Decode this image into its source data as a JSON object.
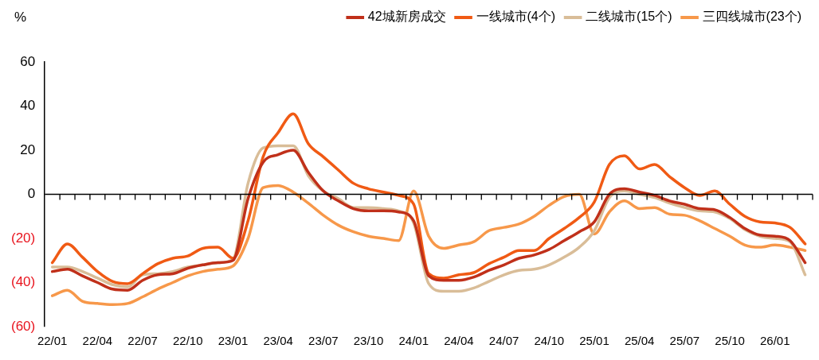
{
  "chart_data": {
    "type": "line",
    "ylabel": "%",
    "categories": [
      "22/01",
      null,
      null,
      "22/04",
      null,
      null,
      "22/07",
      null,
      null,
      "22/10",
      null,
      null,
      "23/01",
      null,
      null,
      "23/04",
      null,
      null,
      "23/07",
      null,
      null,
      "23/10",
      null,
      null,
      "24/01",
      null,
      null,
      "24/04",
      null,
      null,
      "24/07",
      null,
      null,
      "24/10",
      null,
      null,
      "25/01",
      null,
      null,
      "25/04",
      null,
      null,
      "25/07",
      null,
      null,
      "25/10",
      null,
      null,
      "26/01",
      null,
      null
    ],
    "series": [
      {
        "name": "42城新房成交",
        "color": "#c0301a",
        "values": [
          -35,
          -34,
          -37,
          -40,
          -43,
          -43.5,
          -39,
          -36.5,
          -36,
          -33.5,
          -32,
          -31,
          -30,
          -2,
          14.5,
          18,
          20,
          10,
          1.5,
          -3,
          -6.5,
          -7.5,
          -7.5,
          -8,
          -12,
          -37,
          -39,
          -39,
          -37.5,
          -34.5,
          -32,
          -29,
          -27.5,
          -25,
          -21,
          -17,
          -12.5,
          0,
          2.5,
          1,
          -0.5,
          -3,
          -4.5,
          -6.5,
          -7,
          -10.5,
          -15.5,
          -18.5,
          -19,
          -21,
          -31
        ]
      },
      {
        "name": "一线城市(4个)",
        "color": "#f05a14",
        "values": [
          -31,
          -22.5,
          -28.5,
          -35,
          -39.5,
          -40.5,
          -36,
          -31.5,
          -29,
          -28,
          -24.5,
          -24,
          -29,
          -12,
          17,
          28,
          36.5,
          23,
          17,
          11,
          5,
          2.5,
          1,
          -0.5,
          -4.5,
          -36,
          -38,
          -36.5,
          -35.5,
          -31.5,
          -28.5,
          -25.5,
          -25.5,
          -20,
          -15.5,
          -10.5,
          -3.5,
          13.5,
          17.5,
          11.5,
          13.5,
          8,
          3,
          -0.5,
          1.5,
          -4.5,
          -10,
          -12.5,
          -13,
          -15,
          -22.5
        ]
      },
      {
        "name": "二线城市(15个)",
        "color": "#d9bd98",
        "values": [
          -33,
          -33,
          -35,
          -38,
          -41,
          -42,
          -36.5,
          -36,
          -35,
          -33,
          -32,
          -31,
          -29.5,
          5,
          21,
          22,
          22,
          8.5,
          1.5,
          -2,
          -6,
          -6,
          -6.5,
          -7.5,
          -13,
          -40.5,
          -44,
          -44,
          -42.5,
          -39.5,
          -36.5,
          -34.5,
          -34,
          -32,
          -28.5,
          -24,
          -16.5,
          -1.5,
          1.5,
          0,
          -1.5,
          -4,
          -6,
          -7.5,
          -8,
          -11,
          -16,
          -19,
          -20,
          -21.5,
          -36.5
        ]
      },
      {
        "name": "三四线城市(23个)",
        "color": "#f7984a",
        "values": [
          -46,
          -43.5,
          -48.5,
          -49.5,
          -50,
          -49.5,
          -46.5,
          -43,
          -40,
          -37,
          -35,
          -34,
          -32.5,
          -20,
          3,
          4,
          1,
          -4,
          -9.5,
          -14,
          -17,
          -19,
          -20,
          -21,
          1.5,
          -19,
          -24.5,
          -23,
          -21.5,
          -16.5,
          -15,
          -13.5,
          -10,
          -5,
          -1,
          0,
          -18,
          -8,
          -3,
          -6.5,
          -6,
          -9,
          -9.5,
          -12,
          -15.5,
          -19,
          -23,
          -24,
          -23,
          -24,
          -25.5
        ]
      }
    ],
    "ylim": [
      -60,
      60
    ],
    "yticks": [
      {
        "value": -60,
        "label": "(60)"
      },
      {
        "value": -40,
        "label": "(40)"
      },
      {
        "value": -20,
        "label": "(20)"
      },
      0,
      20,
      40,
      60
    ],
    "ref_lines": [
      {
        "axis": "y",
        "value": 0
      }
    ],
    "grid": false,
    "legend": "top right",
    "marker": "none",
    "line_style": "solid"
  }
}
